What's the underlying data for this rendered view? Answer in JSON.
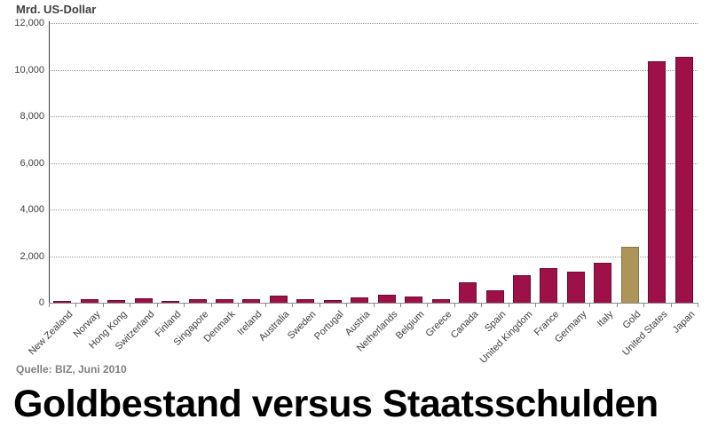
{
  "chart": {
    "axis_title": "Mrd. US-Dollar",
    "source": "Quelle: BIZ, Juni 2010"
  },
  "headline": "Goldbestand versus Staatsschulden",
  "chart_data": {
    "type": "bar",
    "title": "Goldbestand versus Staatsschulden",
    "ylabel": "Mrd. US-Dollar",
    "xlabel": "",
    "ylim": [
      0,
      12000
    ],
    "grid": "horizontal-dotted",
    "legend_position": "none",
    "source": "Quelle: BIZ, Juni 2010",
    "categories": [
      "New Zealand",
      "Norway",
      "Hong Kong",
      "Switzerland",
      "Finland",
      "Singapore",
      "Denmark",
      "Ireland",
      "Australia",
      "Sweden",
      "Portugal",
      "Austria",
      "Netherlands",
      "Belgium",
      "Greece",
      "Canada",
      "Spain",
      "United Kingdom",
      "France",
      "Germany",
      "Italy",
      "Gold",
      "United States",
      "Japan"
    ],
    "values": [
      75,
      150,
      125,
      185,
      65,
      150,
      135,
      140,
      290,
      140,
      110,
      220,
      345,
      280,
      165,
      880,
      520,
      1180,
      1480,
      1340,
      1720,
      2400,
      10350,
      10550
    ],
    "bar_color": "#9E1148",
    "bar_border_color": "#6E0B32",
    "highlight_category": "Gold",
    "highlight_color": "#AD9459",
    "highlight_border_color": "#8A7544",
    "yticks": [
      {
        "value": 0,
        "label": "0"
      },
      {
        "value": 2000,
        "label": "2,000"
      },
      {
        "value": 4000,
        "label": "4,000"
      },
      {
        "value": 6000,
        "label": "6,000"
      },
      {
        "value": 8000,
        "label": "8,000"
      },
      {
        "value": 10000,
        "label": "10,000"
      },
      {
        "value": 12000,
        "label": "12,000"
      }
    ]
  }
}
